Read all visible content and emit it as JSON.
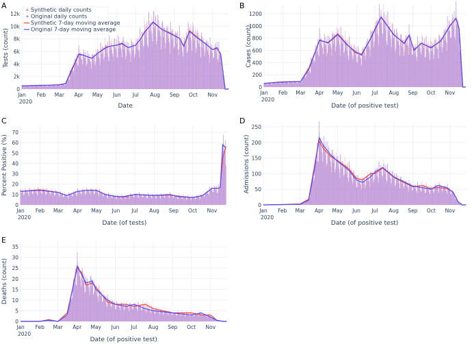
{
  "colors": {
    "synthetic": "#ff3b3b",
    "original": "#4d4dff",
    "synthetic_bar": "#ff9a9a",
    "original_bar": "#a98ce6",
    "text": "#2a3f5f",
    "grid": "#eef1f7"
  },
  "legend": {
    "items": [
      {
        "label": "Synthetic daily counts",
        "kind": "marker",
        "series": "synthetic"
      },
      {
        "label": "Original daily counts",
        "kind": "marker",
        "series": "original"
      },
      {
        "label": "Synthetic 7-day moving average",
        "kind": "line",
        "series": "synthetic"
      },
      {
        "label": "Original 7-day moving average",
        "kind": "line",
        "series": "original"
      }
    ]
  },
  "chart_data": [
    {
      "panel": "A",
      "type": "bar+line",
      "ylabel": "Tests (count)",
      "xlabel": "Date",
      "yticks": [
        0,
        2000,
        4000,
        6000,
        8000,
        10000,
        12000
      ],
      "ytick_labels": [
        "0",
        "2k",
        "4k",
        "6k",
        "8k",
        "10k",
        "12k"
      ],
      "ylim": [
        0,
        13100
      ],
      "xlim_days": [
        0,
        331
      ],
      "x_tick_labels": [
        "Jan",
        "Feb",
        "Mar",
        "Apr",
        "May",
        "Jun",
        "Jul",
        "Aug",
        "Sep",
        "Oct",
        "Nov"
      ],
      "year_label": "2020",
      "x_days": [
        0,
        14,
        31,
        45,
        60,
        70,
        80,
        91,
        98,
        112,
        121,
        135,
        140,
        152,
        160,
        170,
        182,
        190,
        196,
        210,
        224,
        238,
        252,
        259,
        268,
        280,
        294,
        305,
        312,
        318,
        325,
        331
      ],
      "original_ma": [
        500,
        550,
        600,
        620,
        700,
        900,
        3200,
        5600,
        5400,
        4900,
        5700,
        6600,
        6800,
        7000,
        7300,
        6600,
        7000,
        8000,
        9000,
        10700,
        9500,
        8800,
        8100,
        6800,
        9200,
        8200,
        7200,
        6300,
        6600,
        5500,
        0,
        0
      ],
      "synthetic_ma": [
        500,
        550,
        600,
        620,
        700,
        850,
        3000,
        5500,
        5400,
        4900,
        5700,
        6700,
        6800,
        7000,
        7200,
        6600,
        7000,
        8000,
        9100,
        10600,
        9500,
        8900,
        8100,
        6900,
        9300,
        8300,
        7200,
        6300,
        6500,
        5500,
        0,
        0
      ],
      "legend_position": "top-left"
    },
    {
      "panel": "B",
      "type": "bar+line",
      "ylabel": "Cases (count)",
      "xlabel": "Date (of positive test)",
      "yticks": [
        0,
        200,
        400,
        600,
        800,
        1000,
        1200
      ],
      "ytick_labels": [
        "0",
        "200",
        "400",
        "600",
        "800",
        "1000",
        "1200"
      ],
      "ylim": [
        0,
        1335
      ],
      "xlim_days": [
        0,
        331
      ],
      "x_tick_labels": [
        "Jan",
        "Feb",
        "Mar",
        "Apr",
        "May",
        "Jun",
        "Jul",
        "Aug",
        "Sep",
        "Oct",
        "Nov"
      ],
      "year_label": "2020",
      "x_days": [
        0,
        31,
        60,
        74,
        91,
        105,
        121,
        135,
        150,
        160,
        175,
        182,
        192,
        213,
        230,
        238,
        246,
        258,
        274,
        290,
        305,
        315,
        320,
        326,
        331
      ],
      "original_ma": [
        60,
        80,
        90,
        300,
        770,
        720,
        860,
        700,
        580,
        520,
        800,
        950,
        1150,
        850,
        720,
        850,
        600,
        720,
        640,
        760,
        1000,
        1130,
        950,
        0,
        0
      ],
      "synthetic_ma": [
        60,
        85,
        90,
        320,
        760,
        730,
        870,
        710,
        560,
        540,
        790,
        940,
        1140,
        860,
        710,
        840,
        610,
        710,
        650,
        750,
        1010,
        1120,
        960,
        0,
        0
      ]
    },
    {
      "panel": "C",
      "type": "bar+line",
      "ylabel": "Percent Positive (%)",
      "xlabel": "Date (of tests)",
      "yticks": [
        0,
        10,
        20,
        30,
        40,
        50,
        60,
        70
      ],
      "ytick_labels": [
        "0",
        "10",
        "20",
        "30",
        "40",
        "50",
        "60",
        "70"
      ],
      "ylim": [
        0,
        76.6
      ],
      "xlim_days": [
        0,
        331
      ],
      "x_tick_labels": [
        "Jan",
        "Feb",
        "Mar",
        "Apr",
        "May",
        "Jun",
        "Jul",
        "Aug",
        "Sep",
        "Oct",
        "Nov"
      ],
      "year_label": "2020",
      "x_days": [
        0,
        31,
        60,
        74,
        91,
        105,
        121,
        135,
        152,
        165,
        182,
        213,
        238,
        250,
        274,
        290,
        305,
        315,
        318,
        322,
        327
      ],
      "original_ma": [
        13,
        14,
        12,
        9,
        13,
        14,
        14,
        10,
        8,
        8,
        10,
        9,
        10,
        8,
        7,
        9,
        16,
        16,
        17,
        58,
        55
      ],
      "synthetic_ma": [
        13,
        14.5,
        12,
        9,
        13,
        14,
        14,
        10,
        8,
        7.5,
        10,
        9,
        9.5,
        8.5,
        7,
        9,
        16,
        16,
        17,
        45,
        56
      ]
    },
    {
      "panel": "D",
      "type": "bar+line",
      "ylabel": "Admissions (count)",
      "xlabel": "Date (of positive test)",
      "yticks": [
        0,
        50,
        100,
        150,
        200,
        250
      ],
      "ytick_labels": [
        "0",
        "50",
        "100",
        "150",
        "200",
        "250"
      ],
      "ylim": [
        0,
        261
      ],
      "xlim_days": [
        0,
        331
      ],
      "x_tick_labels": [
        "Jan",
        "Feb",
        "Mar",
        "Apr",
        "May",
        "Jun",
        "Jul",
        "Aug",
        "Sep",
        "Oct",
        "Nov"
      ],
      "year_label": "2020",
      "x_days": [
        0,
        31,
        60,
        74,
        84,
        91,
        98,
        110,
        121,
        140,
        152,
        162,
        175,
        182,
        195,
        213,
        244,
        260,
        274,
        285,
        300,
        310,
        318,
        325,
        331
      ],
      "original_ma": [
        0,
        1,
        2,
        15,
        120,
        215,
        190,
        160,
        140,
        110,
        80,
        72,
        90,
        105,
        120,
        90,
        60,
        55,
        50,
        62,
        55,
        40,
        10,
        0,
        0
      ],
      "synthetic_ma": [
        0,
        1,
        3,
        18,
        130,
        205,
        180,
        155,
        142,
        115,
        85,
        80,
        100,
        100,
        118,
        88,
        58,
        62,
        52,
        56,
        52,
        40,
        10,
        0,
        0
      ]
    },
    {
      "panel": "E",
      "type": "bar+line",
      "ylabel": "Deaths (count)",
      "xlabel": "Date (of positive test)",
      "yticks": [
        0,
        5,
        10,
        15,
        20,
        25,
        30,
        35
      ],
      "ytick_labels": [
        "0",
        "5",
        "10",
        "15",
        "20",
        "25",
        "30",
        "35"
      ],
      "ylim": [
        0,
        37.6
      ],
      "xlim_days": [
        0,
        331
      ],
      "x_tick_labels": [
        "Jan",
        "Feb",
        "Mar",
        "Apr",
        "May",
        "Jun",
        "Jul",
        "Aug",
        "Sep",
        "Oct",
        "Nov"
      ],
      "year_label": "2020",
      "x_days": [
        0,
        31,
        45,
        60,
        75,
        91,
        98,
        105,
        115,
        121,
        140,
        152,
        170,
        182,
        200,
        213,
        244,
        274,
        290,
        305,
        315,
        325,
        331
      ],
      "original_ma": [
        0,
        0,
        0.5,
        0,
        3,
        26,
        22,
        18,
        19,
        15,
        10,
        8,
        7,
        8,
        6,
        5,
        4,
        3,
        4,
        2,
        0.5,
        0,
        0
      ],
      "synthetic_ma": [
        0,
        0,
        0.8,
        0,
        4,
        25,
        23,
        17,
        18,
        16,
        9,
        8,
        8,
        7,
        8,
        6,
        4,
        4,
        3,
        3,
        0.5,
        0,
        0
      ]
    }
  ]
}
